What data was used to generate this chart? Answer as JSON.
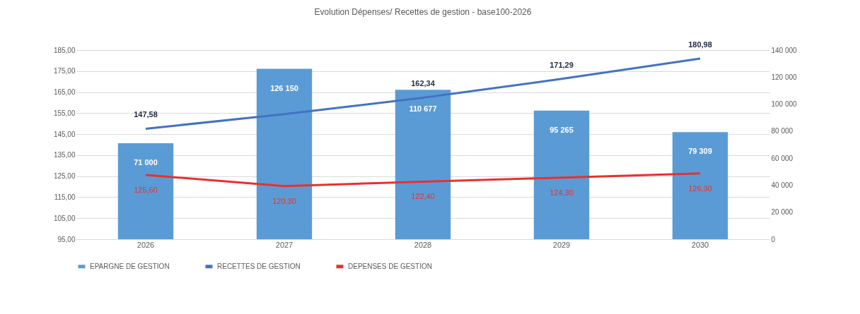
{
  "chart_data": {
    "type": "bar",
    "title": "Evolution Dépenses/ Recettes de gestion - base100-2026",
    "categories": [
      "2026",
      "2027",
      "2028",
      "2029",
      "2030"
    ],
    "series": [
      {
        "name": "EPARGNE DE GESTION",
        "axis": "y2",
        "color": "#5b9bd5",
        "values": [
          71000,
          126150,
          110677,
          95265,
          79309
        ],
        "value_labels": [
          "71 000",
          "126 150",
          "110 677",
          "95 265",
          "79 309"
        ]
      },
      {
        "name": "RECETTES DE GESTION",
        "type": "line",
        "color": "#4472c4",
        "values": [
          147.58,
          154.5,
          162.34,
          171.29,
          180.98
        ],
        "value_labels": [
          "147,58",
          null,
          "162,34",
          "171,29",
          "180,98"
        ]
      },
      {
        "name": "DEPENSES DE GESTION",
        "type": "line",
        "color": "#e8312e",
        "values": [
          125.6,
          120.3,
          122.4,
          124.3,
          126.3
        ],
        "value_labels": [
          "125,60",
          "120,30",
          "122,40",
          "124,30",
          "126,30"
        ]
      }
    ],
    "ylim": [
      95,
      185
    ],
    "yticks": [
      {
        "value": 95,
        "label": "95,00"
      },
      {
        "value": 105,
        "label": "105,00"
      },
      {
        "value": 115,
        "label": "115,00"
      },
      {
        "value": 125,
        "label": "125,00"
      },
      {
        "value": 135,
        "label": "135,00"
      },
      {
        "value": 145,
        "label": "145,00"
      },
      {
        "value": 155,
        "label": "155,00"
      },
      {
        "value": 165,
        "label": "165,00"
      },
      {
        "value": 175,
        "label": "175,00"
      },
      {
        "value": 185,
        "label": "185,00"
      }
    ],
    "y2lim": [
      0,
      140000
    ],
    "y2ticks": [
      0,
      {
        "value": 20000,
        "label": "20 000"
      },
      {
        "value": 40000,
        "label": "40 000"
      },
      {
        "value": 60000,
        "label": "60 000"
      },
      {
        "value": 80000,
        "label": "80 000"
      },
      {
        "value": 100000,
        "label": "100 000"
      },
      {
        "value": 120000,
        "label": "120 000"
      },
      {
        "value": 140000,
        "label": "140 000"
      }
    ],
    "grid": "y",
    "legend": "bottom"
  }
}
